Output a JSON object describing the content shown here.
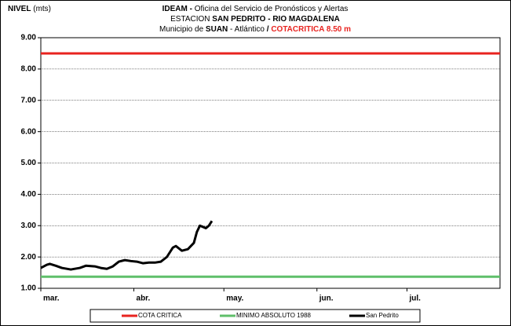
{
  "chart_data": {
    "type": "line",
    "title_lines": [
      [
        "IDEAM -",
        "Oficina del Servicio de Pronósticos y Alertas"
      ],
      [
        "ESTACION",
        "SAN PEDRITO - RIO MAGDALENA"
      ],
      [
        "Municipio de",
        "SUAN",
        "- Atlántico",
        "/",
        "COTACRITICA 8.50  m"
      ]
    ],
    "y_label": [
      "NIVEL",
      "(mts)"
    ],
    "xlim": [
      0,
      153
    ],
    "xticks": [
      {
        "value": 0,
        "label": "mar."
      },
      {
        "value": 31,
        "label": "abr."
      },
      {
        "value": 61,
        "label": "may."
      },
      {
        "value": 92,
        "label": "jun."
      },
      {
        "value": 122,
        "label": "jul."
      }
    ],
    "ylim": [
      1,
      9
    ],
    "yticks": [
      {
        "value": 1,
        "label": "1.00"
      },
      {
        "value": 2,
        "label": "2.00"
      },
      {
        "value": 3,
        "label": "3.00"
      },
      {
        "value": 4,
        "label": "4.00"
      },
      {
        "value": 5,
        "label": "5.00"
      },
      {
        "value": 6,
        "label": "6.00"
      },
      {
        "value": 7,
        "label": "7.00"
      },
      {
        "value": 8,
        "label": "8.00"
      },
      {
        "value": 9,
        "label": "9.00"
      }
    ],
    "grid": true,
    "series": [
      {
        "name": "COTA CRITICA",
        "color": "#e8231f",
        "width": 3,
        "x": [
          0,
          153
        ],
        "values": [
          8.5,
          8.5
        ]
      },
      {
        "name": "MINIMO ABSOLUTO 1988",
        "color": "#5fbf6a",
        "width": 3,
        "x": [
          0,
          153
        ],
        "values": [
          1.37,
          1.37
        ]
      },
      {
        "name": "San Pedrito",
        "color": "#000000",
        "width": 3,
        "x": [
          0,
          2,
          3,
          5,
          7,
          10,
          13,
          15,
          18,
          20,
          22,
          24,
          26,
          28,
          30,
          32,
          34,
          36,
          38,
          40,
          42,
          44,
          45,
          47,
          49,
          51,
          52,
          53,
          55,
          56,
          57
        ],
        "values": [
          1.65,
          1.75,
          1.78,
          1.72,
          1.65,
          1.6,
          1.65,
          1.72,
          1.7,
          1.65,
          1.62,
          1.7,
          1.85,
          1.9,
          1.87,
          1.85,
          1.8,
          1.82,
          1.82,
          1.85,
          2.0,
          2.3,
          2.35,
          2.2,
          2.25,
          2.45,
          2.8,
          3.0,
          2.92,
          3.0,
          3.15
        ]
      }
    ]
  }
}
